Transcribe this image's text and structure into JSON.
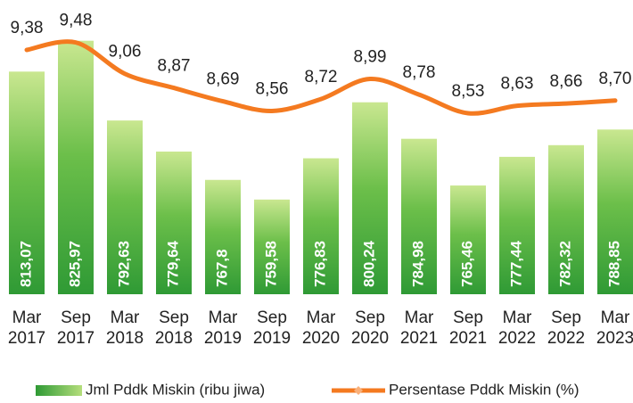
{
  "chart_data": {
    "type": "bar",
    "categories": [
      "Mar 2017",
      "Sep 2017",
      "Mar 2018",
      "Sep 2018",
      "Mar 2019",
      "Sep 2019",
      "Mar 2020",
      "Sep 2020",
      "Mar 2021",
      "Sep 2021",
      "Mar 2022",
      "Sep 2022",
      "Mar 2023"
    ],
    "series": [
      {
        "name": "Jml Pddk Miskin (ribu jiwa)",
        "type": "bar",
        "color": "#3d9e3a",
        "values": [
          813.07,
          825.97,
          792.63,
          779.64,
          767.8,
          759.58,
          776.83,
          800.24,
          784.98,
          765.46,
          777.44,
          782.32,
          788.85
        ],
        "value_labels": [
          "813,07",
          "825,97",
          "792,63",
          "779,64",
          "767,8",
          "759,58",
          "776,83",
          "800,24",
          "784,98",
          "765,46",
          "777,44",
          "782,32",
          "788,85"
        ]
      },
      {
        "name": "Persentase Pddk Miskin (%)",
        "type": "line",
        "axis": "y2",
        "color": "#f47a20",
        "values": [
          9.38,
          9.48,
          9.06,
          8.87,
          8.69,
          8.56,
          8.72,
          8.99,
          8.78,
          8.53,
          8.63,
          8.66,
          8.7
        ],
        "value_labels": [
          "9,38",
          "9,48",
          "9,06",
          "8,87",
          "8,69",
          "8,56",
          "8,72",
          "8,99",
          "8,78",
          "8,53",
          "8,63",
          "8,66",
          "8,70"
        ]
      }
    ],
    "ylim": [
      720,
      843
    ],
    "y2lim": [
      6.1,
      10.05
    ],
    "legend": "bottom"
  }
}
